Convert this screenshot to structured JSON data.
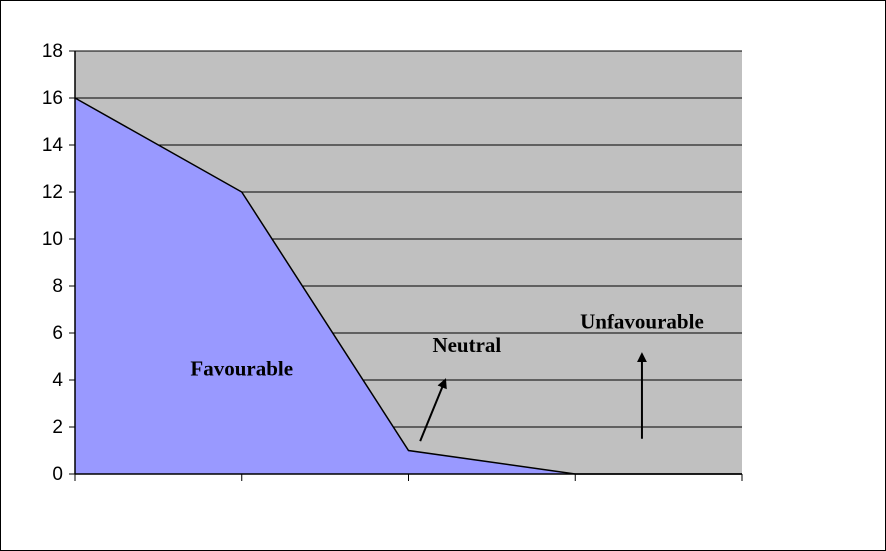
{
  "chart_data": {
    "type": "area",
    "x": [
      0,
      1,
      2,
      3,
      4
    ],
    "series": [
      {
        "values": [
          16,
          12,
          1,
          0,
          0
        ],
        "color": "#9999ff"
      }
    ],
    "ylim": [
      0,
      18
    ],
    "yticks": [
      0,
      2,
      4,
      6,
      8,
      10,
      12,
      14,
      16,
      18
    ],
    "xticks": [
      "",
      "",
      "",
      "",
      ""
    ],
    "plot_background": "#c0c0c0",
    "grid": true,
    "annotations": [
      {
        "text": "Favourable",
        "x": 1.0,
        "y": 4.2
      },
      {
        "text": "Neutral",
        "x": 2.35,
        "y": 5.2
      },
      {
        "text": "Unfavourable",
        "x": 3.4,
        "y": 6.2
      }
    ],
    "arrows": [
      {
        "from": [
          2.07,
          1.4
        ],
        "to": [
          2.22,
          4.0
        ]
      },
      {
        "from": [
          3.4,
          1.5
        ],
        "to": [
          3.4,
          5.1
        ]
      }
    ],
    "title": "",
    "xlabel": "",
    "ylabel": ""
  }
}
